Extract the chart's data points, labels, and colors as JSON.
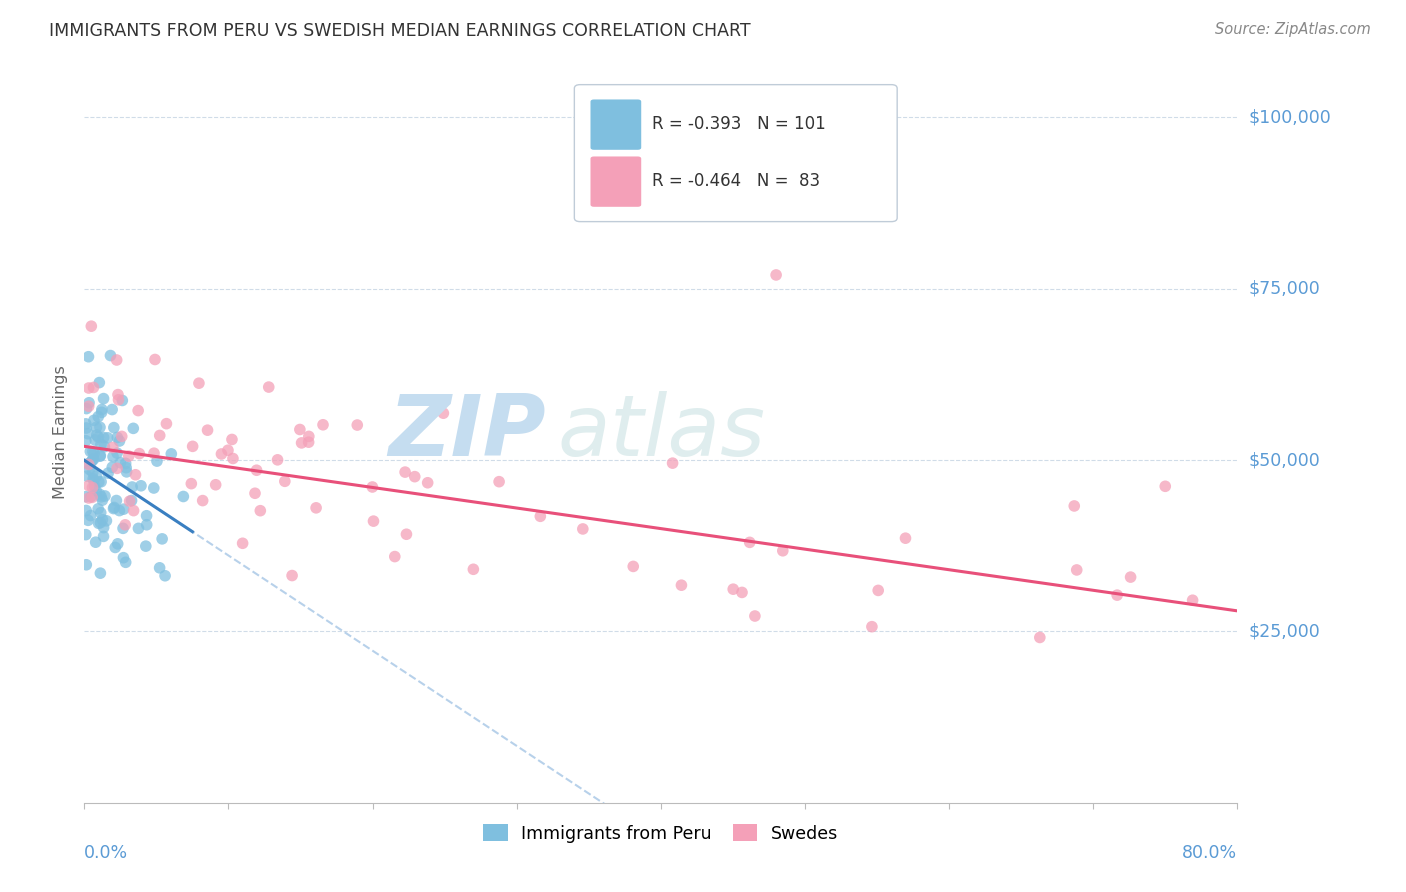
{
  "title": "IMMIGRANTS FROM PERU VS SWEDISH MEDIAN EARNINGS CORRELATION CHART",
  "source": "Source: ZipAtlas.com",
  "ylabel": "Median Earnings",
  "xlim": [
    0.0,
    0.8
  ],
  "ylim": [
    0,
    108000
  ],
  "blue_color": "#7fbfdf",
  "pink_color": "#f4a0b8",
  "blue_line_color": "#3a7fc1",
  "pink_line_color": "#e8507a",
  "dashed_line_color": "#b0cce8",
  "watermark_zip_color": "#c5ddf0",
  "watermark_atlas_color": "#c5dfe0",
  "axis_color": "#5b9bd5",
  "grid_color": "#d0dce8",
  "background_color": "#ffffff",
  "title_color": "#333333",
  "source_color": "#888888",
  "legend_text_color": "#333333",
  "ylabel_color": "#666666",
  "blue_r": "-0.393",
  "blue_n": "101",
  "pink_r": "-0.464",
  "pink_n": "83"
}
